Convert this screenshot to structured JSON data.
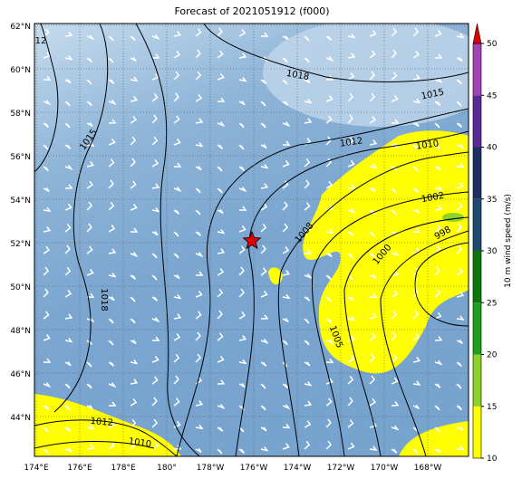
{
  "title": "Forecast of 2021051912 (f000)",
  "lat_labels": [
    "62°N",
    "60°N",
    "58°N",
    "56°N",
    "54°N",
    "52°N",
    "50°N",
    "48°N",
    "46°N",
    "44°N"
  ],
  "lon_labels": [
    "174°E",
    "176°E",
    "178°E",
    "180°",
    "178°W",
    "176°W",
    "174°W",
    "172°W",
    "170°W",
    "168°W"
  ],
  "colorbar": {
    "label": "10 m wind speed (m/s)",
    "ticks": [
      "10",
      "15",
      "20",
      "25",
      "30",
      "35",
      "40",
      "45",
      "50"
    ],
    "colors": [
      "#ffff00",
      "#8cd22a",
      "#1f9e1f",
      "#0d760d",
      "#1d4a6e",
      "#1f2f62",
      "#5a2a94",
      "#a244b4"
    ],
    "extend_color": "#e00000"
  },
  "contour_labels": [
    "12",
    "1018",
    "1015",
    "1015",
    "1012",
    "1010",
    "1002",
    "1008",
    "998",
    "1000",
    "1018",
    "1005",
    "1012",
    "1010"
  ]
}
